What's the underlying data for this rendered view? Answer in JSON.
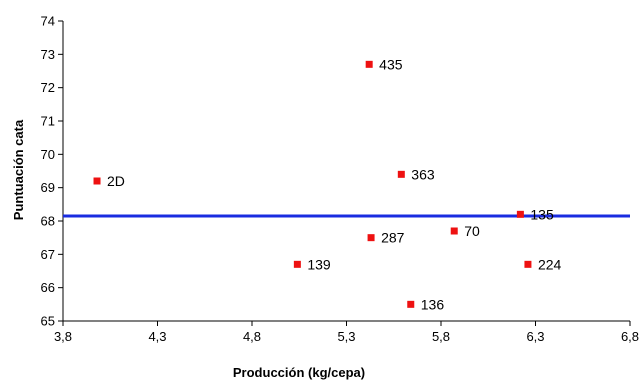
{
  "chart_data": {
    "type": "scatter",
    "title": "",
    "xlabel": "Producción (kg/cepa)",
    "ylabel": "Puntuación cata",
    "xlim": [
      3.8,
      6.8
    ],
    "ylim": [
      65,
      74
    ],
    "x_ticks": [
      "3,8",
      "4,3",
      "4,8",
      "5,3",
      "5,8",
      "6,3",
      "6,8"
    ],
    "y_ticks": [
      "65",
      "66",
      "67",
      "68",
      "69",
      "70",
      "71",
      "72",
      "73",
      "74"
    ],
    "grid": false,
    "legend": "none",
    "series": [
      {
        "points": [
          {
            "label": "2D",
            "x": 3.98,
            "y": 69.2
          },
          {
            "label": "435",
            "x": 5.42,
            "y": 72.7
          },
          {
            "label": "363",
            "x": 5.59,
            "y": 69.4
          },
          {
            "label": "135",
            "x": 6.22,
            "y": 68.2
          },
          {
            "label": "287",
            "x": 5.43,
            "y": 67.5
          },
          {
            "label": "70",
            "x": 5.87,
            "y": 67.7
          },
          {
            "label": "139",
            "x": 5.04,
            "y": 66.7
          },
          {
            "label": "224",
            "x": 6.26,
            "y": 66.7
          },
          {
            "label": "136",
            "x": 5.64,
            "y": 65.5
          }
        ]
      }
    ],
    "reference_line": {
      "y": 68.15,
      "x_start": 3.8,
      "x_end": 6.8
    },
    "colors": {
      "marker": "#ee1111",
      "reference_line": "#1a2ce0",
      "axis": "#000000"
    }
  }
}
